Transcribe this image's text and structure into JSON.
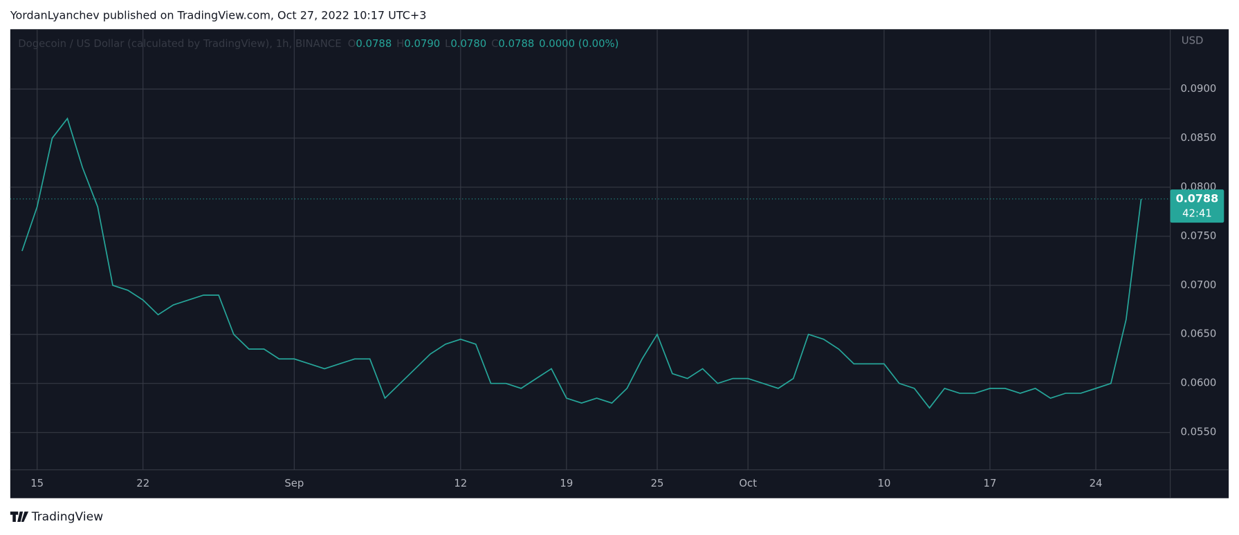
{
  "header": {
    "byline": "YordanLyanchev published on TradingView.com, Oct 27, 2022 10:17 UTC+3"
  },
  "chart_data": {
    "type": "line",
    "title": "Dogecoin / US Dollar (calculated by TradingView), 1h, BINANCE",
    "ohlc": [
      {
        "label": "O",
        "value": "0.0788"
      },
      {
        "label": "H",
        "value": "0.0790"
      },
      {
        "label": "L",
        "value": "0.0780"
      },
      {
        "label": "C",
        "value": "0.0788"
      }
    ],
    "change": "0.0000 (0.00%)",
    "currency": "USD",
    "color": "#26a69a",
    "grid": true,
    "categories": [
      null,
      "15",
      null,
      null,
      null,
      null,
      null,
      null,
      "22",
      null,
      null,
      null,
      null,
      null,
      null,
      null,
      null,
      null,
      "Sep",
      null,
      null,
      null,
      null,
      null,
      null,
      null,
      null,
      null,
      null,
      "12",
      null,
      null,
      null,
      null,
      null,
      null,
      "19",
      null,
      null,
      null,
      null,
      null,
      "25",
      null,
      null,
      null,
      null,
      null,
      "Oct",
      null,
      null,
      null,
      null,
      null,
      null,
      null,
      null,
      "10",
      null,
      null,
      null,
      null,
      null,
      null,
      "17",
      null,
      null,
      null,
      null,
      null,
      null,
      "24",
      null,
      null,
      null
    ],
    "values": [
      0.0735,
      0.078,
      0.085,
      0.087,
      0.082,
      0.078,
      0.07,
      0.0695,
      0.0685,
      0.067,
      0.068,
      0.0685,
      0.069,
      0.069,
      0.065,
      0.0635,
      0.0635,
      0.0625,
      0.0625,
      0.062,
      0.0615,
      0.062,
      0.0625,
      0.0625,
      0.0585,
      0.06,
      0.0615,
      0.063,
      0.064,
      0.0645,
      0.064,
      0.06,
      0.06,
      0.0595,
      0.0605,
      0.0615,
      0.0585,
      0.058,
      0.0585,
      0.058,
      0.0595,
      0.0625,
      0.065,
      0.061,
      0.0605,
      0.0615,
      0.06,
      0.0605,
      0.0605,
      0.06,
      0.0595,
      0.0605,
      0.065,
      0.0645,
      0.0635,
      0.062,
      0.062,
      0.062,
      0.06,
      0.0595,
      0.0575,
      0.0595,
      0.059,
      0.059,
      0.0595,
      0.0595,
      0.059,
      0.0595,
      0.0585,
      0.059,
      0.059,
      0.0595,
      0.06,
      0.0665,
      0.0788
    ],
    "ylim": [
      0.0512,
      0.0961
    ],
    "yticks": [
      {
        "value": 0.055,
        "label": "0.0550"
      },
      {
        "value": 0.06,
        "label": "0.0600"
      },
      {
        "value": 0.065,
        "label": "0.0650"
      },
      {
        "value": 0.07,
        "label": "0.0700"
      },
      {
        "value": 0.075,
        "label": "0.0750"
      },
      {
        "value": 0.08,
        "label": "0.0800"
      },
      {
        "value": 0.085,
        "label": "0.0850"
      },
      {
        "value": 0.09,
        "label": "0.0900"
      }
    ],
    "last_price": {
      "value": 0.0788,
      "label": "0.0788"
    },
    "countdown": "42:41"
  },
  "footer": {
    "brand": "TradingView"
  }
}
